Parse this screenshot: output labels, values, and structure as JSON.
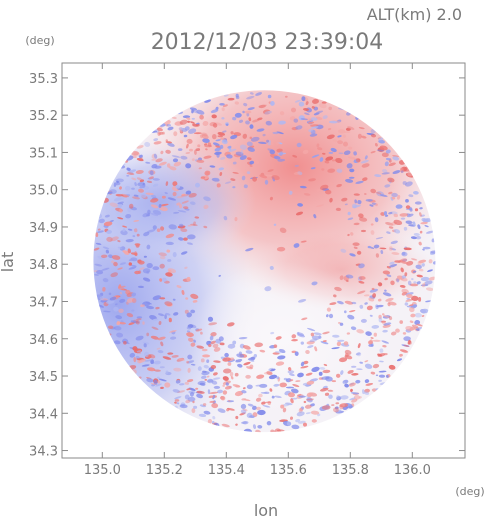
{
  "header": {
    "altitude_label": "ALT(km) 2.0",
    "timestamp": "2012/12/03 23:39:04"
  },
  "chart_data": {
    "type": "heatmap",
    "title": "2012/12/03 23:39:04",
    "subtitle": "ALT(km) 2.0",
    "xlabel": "lon",
    "ylabel": "lat",
    "x_unit": "(deg)",
    "y_unit": "(deg)",
    "xlim": [
      134.87,
      136.17
    ],
    "ylim": [
      34.28,
      35.34
    ],
    "x_ticks": [
      135.0,
      135.2,
      135.4,
      135.6,
      135.8,
      136.0
    ],
    "x_tick_labels": [
      "135.0",
      "135.2",
      "135.4",
      "135.6",
      "135.8",
      "136.0"
    ],
    "y_ticks": [
      34.3,
      34.4,
      34.5,
      34.6,
      34.7,
      34.8,
      34.9,
      35.0,
      35.1,
      35.2,
      35.3
    ],
    "y_tick_labels": [
      "34.3",
      "34.4",
      "34.5",
      "34.6",
      "34.7",
      "34.8",
      "34.9",
      "35.0",
      "35.1",
      "35.2",
      "35.3"
    ],
    "radar_center": [
      135.523,
      34.808
    ],
    "radar_radius_deg": 0.56,
    "colors": {
      "positive": "#f08080",
      "negative": "#8c96f0",
      "neutral": "#f5f2f7",
      "frame": "#8a8a8a"
    },
    "grid": false,
    "legend": "none"
  }
}
